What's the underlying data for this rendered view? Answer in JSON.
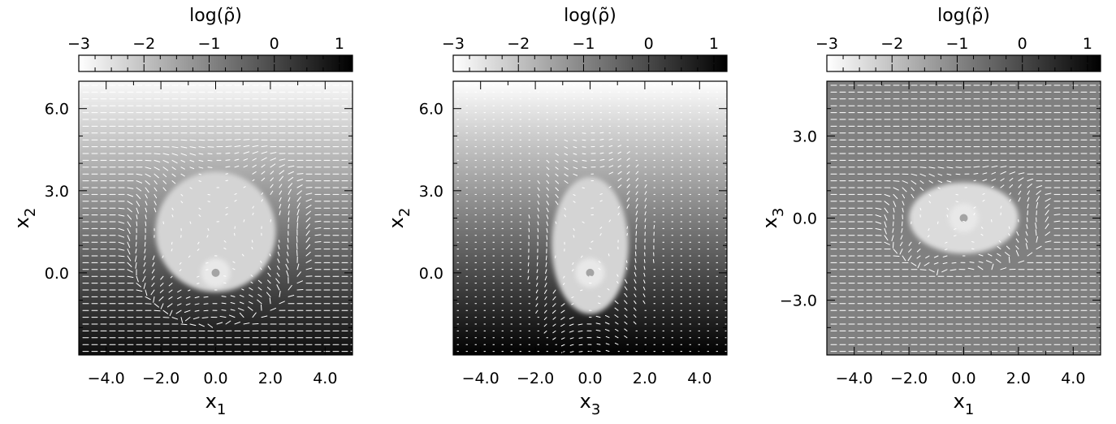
{
  "chart_data": [
    {
      "type": "heatmap",
      "name": "slice-x1-x2",
      "xlabel": "x",
      "xlabel_sub": "1",
      "ylabel": "x",
      "ylabel_sub": "2",
      "xlim": [
        -5.0,
        5.0
      ],
      "ylim": [
        -3.0,
        7.0
      ],
      "xticks": [
        -4.0,
        -2.0,
        0.0,
        2.0,
        4.0
      ],
      "xtick_labels": [
        "−4.0",
        "−2.0",
        "0.0",
        "2.0",
        "4.0"
      ],
      "yticks": [
        0.0,
        3.0,
        6.0
      ],
      "ytick_labels": [
        "0.0",
        "3.0",
        "6.0"
      ],
      "colorbar": {
        "label": "log(ρ̃)",
        "range": [
          -3,
          1.2
        ],
        "ticks": [
          -3,
          -2,
          -1,
          0,
          1
        ],
        "tick_labels": [
          "−3",
          "−2",
          "−1",
          "0",
          "1"
        ],
        "colormap": "white-to-black"
      },
      "background_gradient": {
        "direction": "vertical",
        "value_at_top": -2.9,
        "value_at_bottom": 1.0
      },
      "blob": {
        "shape": "ellipse",
        "center": [
          0.0,
          1.5
        ],
        "radii": [
          2.2,
          2.2
        ],
        "value": -2.3
      },
      "core": {
        "center": [
          0.0,
          0.0
        ],
        "value": -1.5
      },
      "vector_field": "uniform flow in +x1 direction with circulation around the blob"
    },
    {
      "type": "heatmap",
      "name": "slice-x3-x2",
      "xlabel": "x",
      "xlabel_sub": "3",
      "ylabel": "x",
      "ylabel_sub": "2",
      "xlim": [
        -5.0,
        5.0
      ],
      "ylim": [
        -3.0,
        7.0
      ],
      "xticks": [
        -4.0,
        -2.0,
        0.0,
        2.0,
        4.0
      ],
      "xtick_labels": [
        "−4.0",
        "−2.0",
        "0.0",
        "2.0",
        "4.0"
      ],
      "yticks": [
        0.0,
        3.0,
        6.0
      ],
      "ytick_labels": [
        "0.0",
        "3.0",
        "6.0"
      ],
      "colorbar": {
        "label": "log(ρ̃)",
        "range": [
          -3,
          1.2
        ],
        "ticks": [
          -3,
          -2,
          -1,
          0,
          1
        ],
        "tick_labels": [
          "−3",
          "−2",
          "−1",
          "0",
          "1"
        ],
        "colormap": "white-to-black"
      },
      "background_gradient": {
        "direction": "vertical",
        "value_at_top": -3.0,
        "value_at_bottom": 1.2
      },
      "blob": {
        "shape": "ellipse",
        "center": [
          0.0,
          1.0
        ],
        "radii": [
          1.4,
          2.5
        ],
        "value": -2.3
      },
      "core": {
        "center": [
          0.0,
          0.0
        ],
        "value": -1.5
      },
      "vector_field": "sparse small vectors with circulation around the blob"
    },
    {
      "type": "heatmap",
      "name": "slice-x1-x3",
      "xlabel": "x",
      "xlabel_sub": "1",
      "ylabel": "x",
      "ylabel_sub": "3",
      "xlim": [
        -5.0,
        5.0
      ],
      "ylim": [
        -5.0,
        5.0
      ],
      "xticks": [
        -4.0,
        -2.0,
        0.0,
        2.0,
        4.0
      ],
      "xtick_labels": [
        "−4.0",
        "−2.0",
        "0.0",
        "2.0",
        "4.0"
      ],
      "yticks": [
        -3.0,
        0.0,
        3.0
      ],
      "ytick_labels": [
        "−3.0",
        "0.0",
        "3.0"
      ],
      "colorbar": {
        "label": "log(ρ̃)",
        "range": [
          -3,
          1.2
        ],
        "ticks": [
          -3,
          -2,
          -1,
          0,
          1
        ],
        "tick_labels": [
          "−3",
          "−2",
          "−1",
          "0",
          "1"
        ],
        "colormap": "white-to-black"
      },
      "background_gradient": {
        "direction": "uniform",
        "value_at_top": -0.9,
        "value_at_bottom": -0.9
      },
      "blob": {
        "shape": "ellipse",
        "center": [
          0.0,
          0.0
        ],
        "radii": [
          2.0,
          1.3
        ],
        "value": -2.4
      },
      "core": {
        "center": [
          0.0,
          0.0
        ],
        "value": -1.5
      },
      "vector_field": "uniform flow in +x1 direction with circulation around the blob"
    }
  ]
}
